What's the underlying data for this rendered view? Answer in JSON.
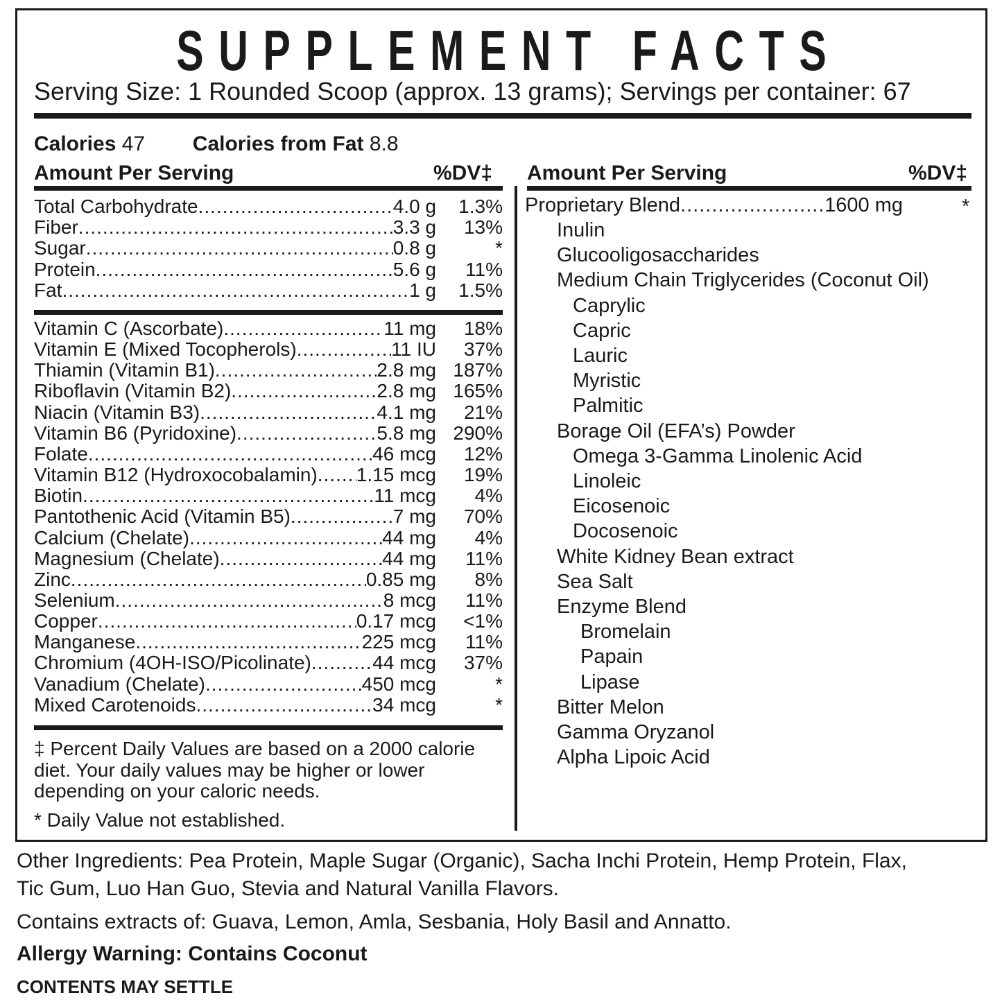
{
  "title": "SUPPLEMENT FACTS",
  "serving": "Serving Size: 1 Rounded Scoop (approx. 13 grams); Servings per container: 67",
  "calories": {
    "label": "Calories",
    "value": "47",
    "fat_label": "Calories from Fat",
    "fat_value": "8.8"
  },
  "header": {
    "amount": "Amount Per Serving",
    "dv": "%DV‡"
  },
  "macros": [
    {
      "name": "Total Carbohydrate",
      "amount": "4.0 g",
      "dv": "1.3%"
    },
    {
      "name": "Fiber",
      "amount": "3.3 g",
      "dv": "13%"
    },
    {
      "name": "Sugar",
      "amount": "0.8 g",
      "dv": "*"
    },
    {
      "name": "Protein",
      "amount": "5.6 g",
      "dv": "11%"
    },
    {
      "name": "Fat",
      "amount": "1 g",
      "dv": "1.5%"
    }
  ],
  "vitamins": [
    {
      "name": "Vitamin C (Ascorbate)",
      "amount": "11 mg",
      "dv": "18%"
    },
    {
      "name": "Vitamin E (Mixed Tocopherols)",
      "amount": "11 IU",
      "dv": "37%"
    },
    {
      "name": "Thiamin (Vitamin B1)",
      "amount": "2.8 mg",
      "dv": "187%"
    },
    {
      "name": "Riboflavin (Vitamin B2)",
      "amount": "2.8 mg",
      "dv": "165%"
    },
    {
      "name": "Niacin (Vitamin B3)",
      "amount": "4.1 mg",
      "dv": "21%"
    },
    {
      "name": "Vitamin B6 (Pyridoxine)",
      "amount": "5.8 mg",
      "dv": "290%"
    },
    {
      "name": "Folate",
      "amount": "46 mcg",
      "dv": "12%"
    },
    {
      "name": "Vitamin B12 (Hydroxocobalamin)",
      "amount": "1.15 mcg",
      "dv": "19%"
    },
    {
      "name": "Biotin",
      "amount": "11 mcg",
      "dv": "4%"
    },
    {
      "name": "Pantothenic Acid (Vitamin B5)",
      "amount": "7 mg",
      "dv": "70%"
    },
    {
      "name": "Calcium (Chelate)",
      "amount": "44 mg",
      "dv": "4%"
    },
    {
      "name": "Magnesium (Chelate)",
      "amount": "44 mg",
      "dv": "11%"
    },
    {
      "name": "Zinc",
      "amount": "0.85 mg",
      "dv": "8%"
    },
    {
      "name": "Selenium",
      "amount": "8 mcg",
      "dv": "11%"
    },
    {
      "name": "Copper",
      "amount": "0.17 mcg",
      "dv": "<1%"
    },
    {
      "name": "Manganese",
      "amount": "225 mcg",
      "dv": "11%"
    },
    {
      "name": "Chromium (4OH-ISO/Picolinate)",
      "amount": "44 mcg",
      "dv": "37%"
    },
    {
      "name": "Vanadium (Chelate)",
      "amount": "450 mcg",
      "dv": "*"
    },
    {
      "name": "Mixed Carotenoids",
      "amount": "34 mcg",
      "dv": "*"
    }
  ],
  "footnotes": {
    "line1": "‡ Percent Daily Values are based on a 2000 calorie",
    "line2": "diet. Your daily values may be higher or lower",
    "line3": "depending on your caloric needs.",
    "line4": "* Daily Value not established."
  },
  "blend": {
    "name": "Proprietary Blend",
    "amount": "1600 mg",
    "dv": "*"
  },
  "blend_items": [
    {
      "name": "Inulin",
      "level": 1
    },
    {
      "name": "Glucooligosaccharides",
      "level": 1
    },
    {
      "name": "Medium Chain Triglycerides (Coconut Oil)",
      "level": 1
    },
    {
      "name": "Caprylic",
      "level": 2
    },
    {
      "name": "Capric",
      "level": 2
    },
    {
      "name": "Lauric",
      "level": 2
    },
    {
      "name": "Myristic",
      "level": 2
    },
    {
      "name": "Palmitic",
      "level": 2
    },
    {
      "name": "Borage Oil (EFA’s) Powder",
      "level": 1
    },
    {
      "name": "Omega 3-Gamma Linolenic Acid",
      "level": 2
    },
    {
      "name": "Linoleic",
      "level": 2
    },
    {
      "name": "Eicosenoic",
      "level": 2
    },
    {
      "name": "Docosenoic",
      "level": 2
    },
    {
      "name": "White Kidney Bean extract",
      "level": 1
    },
    {
      "name": "Sea Salt",
      "level": 1
    },
    {
      "name": "Enzyme Blend",
      "level": 1
    },
    {
      "name": "Bromelain",
      "level": 3
    },
    {
      "name": "Papain",
      "level": 3
    },
    {
      "name": "Lipase",
      "level": 3
    },
    {
      "name": "Bitter Melon",
      "level": 1
    },
    {
      "name": "Gamma Oryzanol",
      "level": 1
    },
    {
      "name": "Alpha Lipoic Acid",
      "level": 1
    }
  ],
  "other": {
    "line1": "Other Ingredients: Pea Protein, Maple Sugar (Organic), Sacha Inchi Protein, Hemp Protein, Flax,",
    "line2": "Tic Gum, Luo Han Guo, Stevia and Natural Vanilla Flavors.",
    "extracts": "Contains extracts of: Guava, Lemon, Amla, Sesbania, Holy Basil and Annatto.",
    "allergy": "Allergy Warning: Contains Coconut",
    "settle": "CONTENTS MAY SETTLE"
  }
}
